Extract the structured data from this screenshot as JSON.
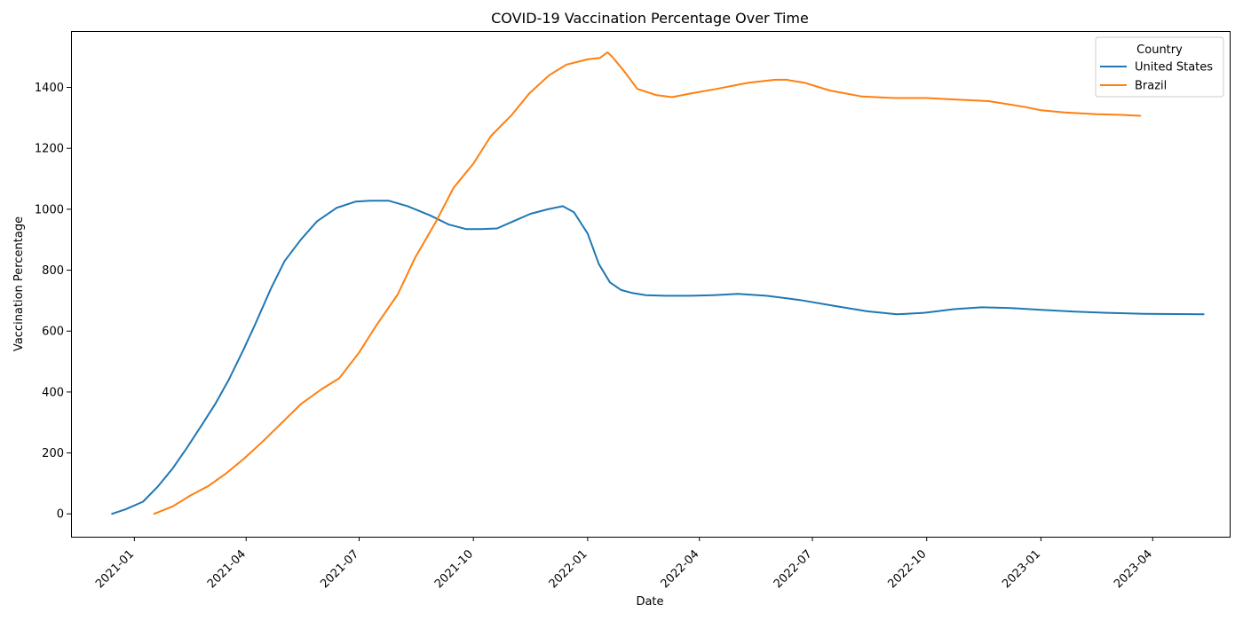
{
  "chart_data": {
    "type": "line",
    "title": "COVID-19 Vaccination Percentage Over Time",
    "xlabel": "Date",
    "ylabel": "Vaccination Percentage",
    "ylim": [
      -75,
      1585
    ],
    "xlim": [
      "2020-11-11",
      "2023-06-02"
    ],
    "yticks": [
      0,
      200,
      400,
      600,
      800,
      1000,
      1200,
      1400
    ],
    "xticks": [
      "2021-01",
      "2021-04",
      "2021-07",
      "2021-10",
      "2022-01",
      "2022-04",
      "2022-07",
      "2022-10",
      "2023-01",
      "2023-04"
    ],
    "grid": false,
    "legend": {
      "title": "Country",
      "position": "top-right"
    },
    "series": [
      {
        "name": "United States",
        "color": "#1f77b4",
        "x": [
          "2020-12-14",
          "2020-12-25",
          "2021-01-08",
          "2021-01-20",
          "2021-02-01",
          "2021-02-12",
          "2021-02-24",
          "2021-03-07",
          "2021-03-18",
          "2021-03-30",
          "2021-04-08",
          "2021-04-21",
          "2021-05-02",
          "2021-05-15",
          "2021-05-28",
          "2021-06-13",
          "2021-06-28",
          "2021-07-10",
          "2021-07-25",
          "2021-08-09",
          "2021-08-27",
          "2021-09-11",
          "2021-09-25",
          "2021-10-07",
          "2021-10-20",
          "2021-11-03",
          "2021-11-16",
          "2021-11-30",
          "2021-12-12",
          "2021-12-21",
          "2022-01-01",
          "2022-01-10",
          "2022-01-19",
          "2022-01-28",
          "2022-02-06",
          "2022-02-17",
          "2022-03-04",
          "2022-03-25",
          "2022-04-12",
          "2022-05-02",
          "2022-05-25",
          "2022-06-21",
          "2022-07-20",
          "2022-08-14",
          "2022-09-07",
          "2022-09-29",
          "2022-10-23",
          "2022-11-14",
          "2022-12-06",
          "2023-01-01",
          "2023-01-28",
          "2023-02-23",
          "2023-03-25",
          "2023-04-20",
          "2023-05-12"
        ],
        "y": [
          0,
          15,
          40,
          90,
          150,
          215,
          290,
          360,
          440,
          540,
          620,
          740,
          830,
          900,
          960,
          1005,
          1025,
          1028,
          1028,
          1010,
          980,
          950,
          935,
          935,
          937,
          962,
          985,
          1000,
          1010,
          990,
          920,
          820,
          760,
          735,
          725,
          718,
          716,
          716,
          718,
          722,
          716,
          702,
          682,
          665,
          655,
          660,
          672,
          678,
          676,
          670,
          664,
          660,
          657,
          656,
          655
        ]
      },
      {
        "name": "Brazil",
        "color": "#ff7f0e",
        "x": [
          "2021-01-17",
          "2021-02-01",
          "2021-02-15",
          "2021-03-01",
          "2021-03-15",
          "2021-03-30",
          "2021-04-15",
          "2021-04-30",
          "2021-05-15",
          "2021-06-01",
          "2021-06-15",
          "2021-07-01",
          "2021-07-15",
          "2021-08-01",
          "2021-08-15",
          "2021-09-01",
          "2021-09-15",
          "2021-10-01",
          "2021-10-15",
          "2021-11-01",
          "2021-11-15",
          "2021-12-01",
          "2021-12-15",
          "2022-01-01",
          "2022-01-11",
          "2022-01-17",
          "2022-01-21",
          "2022-01-31",
          "2022-02-10",
          "2022-02-25",
          "2022-03-10",
          "2022-03-25",
          "2022-04-15",
          "2022-05-10",
          "2022-06-01",
          "2022-06-10",
          "2022-06-25",
          "2022-07-15",
          "2022-08-10",
          "2022-09-05",
          "2022-10-01",
          "2022-10-25",
          "2022-11-20",
          "2022-12-05",
          "2022-12-20",
          "2023-01-01",
          "2023-01-20",
          "2023-02-15",
          "2023-03-05",
          "2023-03-22"
        ],
        "y": [
          0,
          25,
          60,
          90,
          130,
          180,
          240,
          300,
          360,
          410,
          445,
          530,
          620,
          720,
          840,
          960,
          1070,
          1150,
          1240,
          1310,
          1380,
          1440,
          1475,
          1492,
          1497,
          1515,
          1500,
          1450,
          1395,
          1375,
          1368,
          1380,
          1395,
          1415,
          1425,
          1425,
          1415,
          1390,
          1370,
          1365,
          1365,
          1360,
          1355,
          1345,
          1335,
          1325,
          1318,
          1312,
          1310,
          1307
        ]
      }
    ]
  }
}
